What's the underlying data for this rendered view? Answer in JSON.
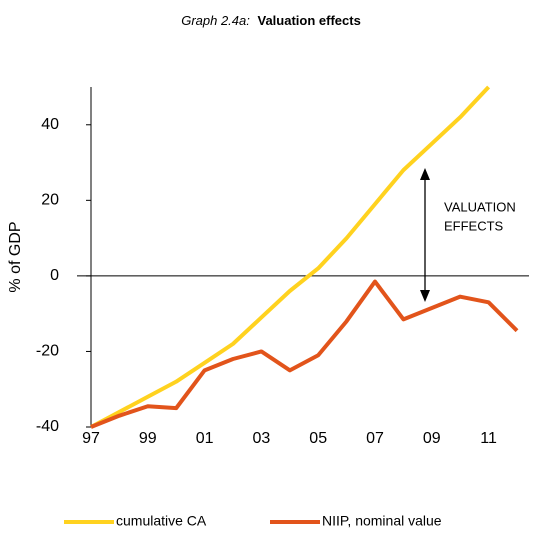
{
  "chart_data": {
    "type": "line",
    "title_label": "Graph 2.4a:",
    "title": "Valuation effects",
    "y_label": "% of GDP",
    "categories": [
      "97",
      null,
      "99",
      null,
      "01",
      null,
      "03",
      null,
      "05",
      null,
      "07",
      null,
      "09",
      null,
      "11",
      null
    ],
    "series": [
      {
        "name": "cumulative CA",
        "color": "#ffd21f",
        "values": [
          -40,
          -36,
          -32,
          -28,
          -23,
          -18,
          -11,
          -4,
          2,
          10,
          19,
          28,
          35,
          42,
          50,
          null
        ]
      },
      {
        "name": "NIIP, nominal value",
        "color": "#e2541b",
        "values": [
          -40,
          -37,
          -34.5,
          -35,
          -25,
          -22,
          -20,
          -25,
          -21,
          -12,
          -1.5,
          -11.5,
          -8.5,
          -5.5,
          -7,
          -14.5
        ]
      }
    ],
    "ylim": [
      -40,
      50
    ],
    "yticks": [
      -40,
      -20,
      0,
      20,
      40
    ],
    "annotation": [
      "VALUATION",
      "EFFECTS"
    ],
    "legend": "bottom"
  }
}
